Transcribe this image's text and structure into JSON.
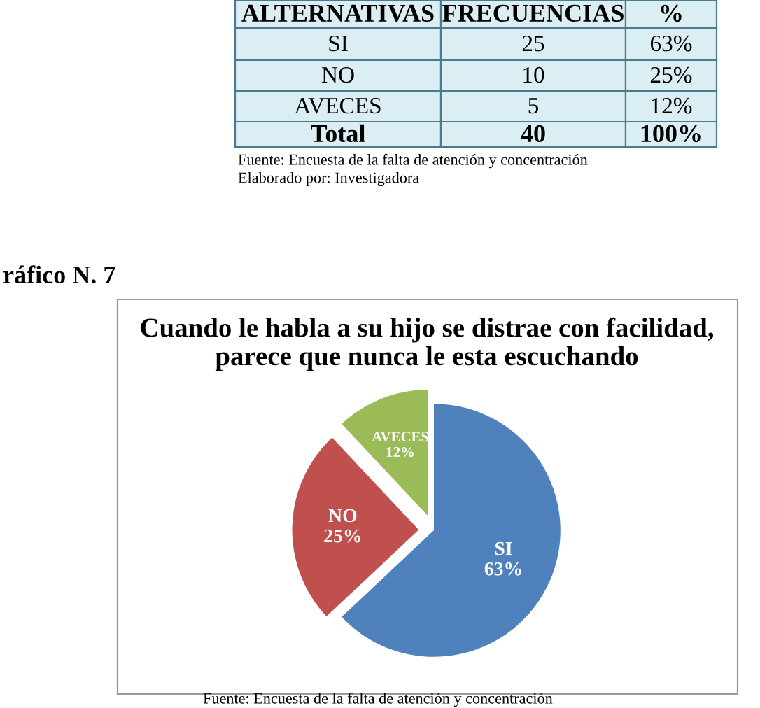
{
  "chart_data": {
    "type": "pie",
    "title": "Cuando le habla a su hijo se distrae con facilidad, parece que nunca le esta escuchando",
    "categories": [
      "SI",
      "NO",
      "AVECES"
    ],
    "values": [
      63,
      25,
      12
    ],
    "colors": [
      "#4f81bd",
      "#c0504d",
      "#9bbb59"
    ],
    "value_labels": [
      "63%",
      "25%",
      "12%"
    ],
    "annotations": [
      "ALTERNATIVAS",
      "FRECUENCIAS",
      "%",
      "SI",
      "25",
      "63%",
      "NO",
      "10",
      "25%",
      "AVECES",
      "5",
      "12%",
      "Total",
      "40",
      "100%",
      "Fuente: Encuesta de la falta de atención y concentración",
      "Elaborado por: Investigadora",
      "ráfico N. 7",
      "Fuente: Encuesta de la falta de atención y concentración"
    ]
  }
}
